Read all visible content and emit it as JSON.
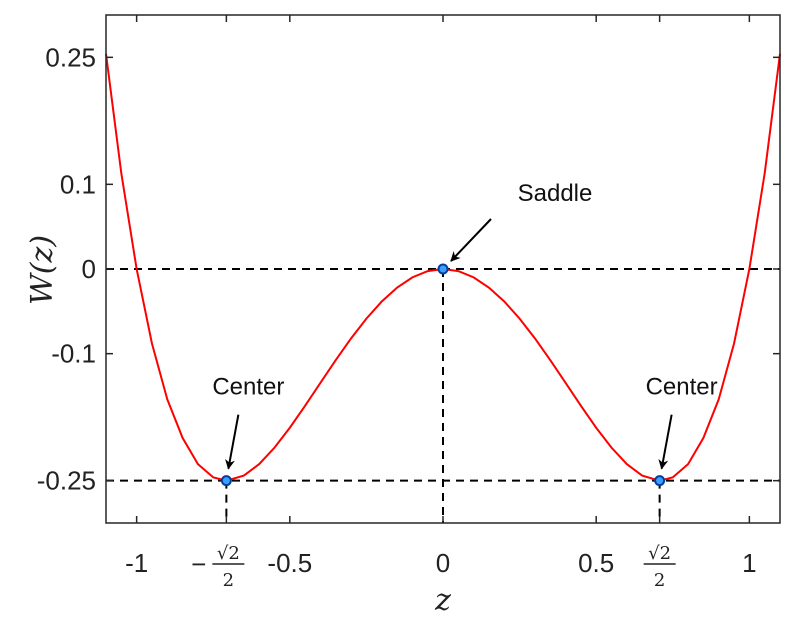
{
  "chart_data": {
    "type": "line",
    "xlabel": "z",
    "ylabel": "W(z)",
    "xlim": [
      -1.1,
      1.1
    ],
    "ylim": [
      -0.3,
      0.3
    ],
    "x_ticks": [
      {
        "value": -1,
        "label": "-1"
      },
      {
        "value": -0.70710678,
        "label": "−√2/2",
        "kind": "frac",
        "sign": "−",
        "num": "√2",
        "den": "2"
      },
      {
        "value": -0.5,
        "label": "-0.5"
      },
      {
        "value": 0,
        "label": "0"
      },
      {
        "value": 0.5,
        "label": "0.5"
      },
      {
        "value": 0.70710678,
        "label": "√2/2",
        "kind": "frac",
        "sign": "",
        "num": "√2",
        "den": "2"
      },
      {
        "value": 1,
        "label": "1"
      }
    ],
    "y_ticks": [
      {
        "value": 0.25,
        "label": "0.25"
      },
      {
        "value": 0.1,
        "label": "0.1"
      },
      {
        "value": 0,
        "label": "0"
      },
      {
        "value": -0.1,
        "label": "-0.1"
      },
      {
        "value": -0.25,
        "label": "-0.25"
      }
    ],
    "series": [
      {
        "color": "#ff0000",
        "function": "z^4 - z^2",
        "x": [
          -1.1,
          -1.05,
          -1.0,
          -0.95,
          -0.9,
          -0.85,
          -0.8,
          -0.75,
          -0.70710678,
          -0.65,
          -0.6,
          -0.55,
          -0.5,
          -0.45,
          -0.4,
          -0.35,
          -0.3,
          -0.25,
          -0.2,
          -0.15,
          -0.1,
          -0.05,
          0,
          0.05,
          0.1,
          0.15,
          0.2,
          0.25,
          0.3,
          0.35,
          0.4,
          0.45,
          0.5,
          0.55,
          0.6,
          0.65,
          0.70710678,
          0.75,
          0.8,
          0.85,
          0.9,
          0.95,
          1.0,
          1.05,
          1.1
        ],
        "y": [
          0.2541,
          0.113,
          0.0,
          -0.088,
          -0.1539,
          -0.1995,
          -0.2304,
          -0.2461,
          -0.25,
          -0.244,
          -0.2304,
          -0.211,
          -0.1875,
          -0.1615,
          -0.1344,
          -0.1075,
          -0.0819,
          -0.0586,
          -0.0384,
          -0.022,
          -0.0099,
          -0.0025,
          0,
          -0.0025,
          -0.0099,
          -0.022,
          -0.0384,
          -0.0586,
          -0.0819,
          -0.1075,
          -0.1344,
          -0.1615,
          -0.1875,
          -0.211,
          -0.2304,
          -0.244,
          -0.25,
          -0.2461,
          -0.2304,
          -0.1995,
          -0.1539,
          -0.088,
          0.0,
          0.113,
          0.2541
        ]
      }
    ],
    "reference_lines": {
      "horizontal_y": [
        0,
        -0.25
      ],
      "vertical_x": [
        -0.70710678,
        0,
        0.70710678
      ],
      "style": "dashed",
      "color": "#000000"
    },
    "points": [
      {
        "x": -0.70710678,
        "y": -0.25
      },
      {
        "x": 0,
        "y": 0
      },
      {
        "x": 0.70710678,
        "y": -0.25
      }
    ],
    "point_fill": "#3aa0ff",
    "point_edge": "#003fa0",
    "annotations": [
      {
        "text": "Saddle",
        "x": 0,
        "y": 0
      },
      {
        "text": "Center",
        "x": -0.70710678,
        "y": -0.25
      },
      {
        "text": "Center",
        "x": 0.70710678,
        "y": -0.25
      }
    ],
    "grid": false,
    "box": true
  }
}
